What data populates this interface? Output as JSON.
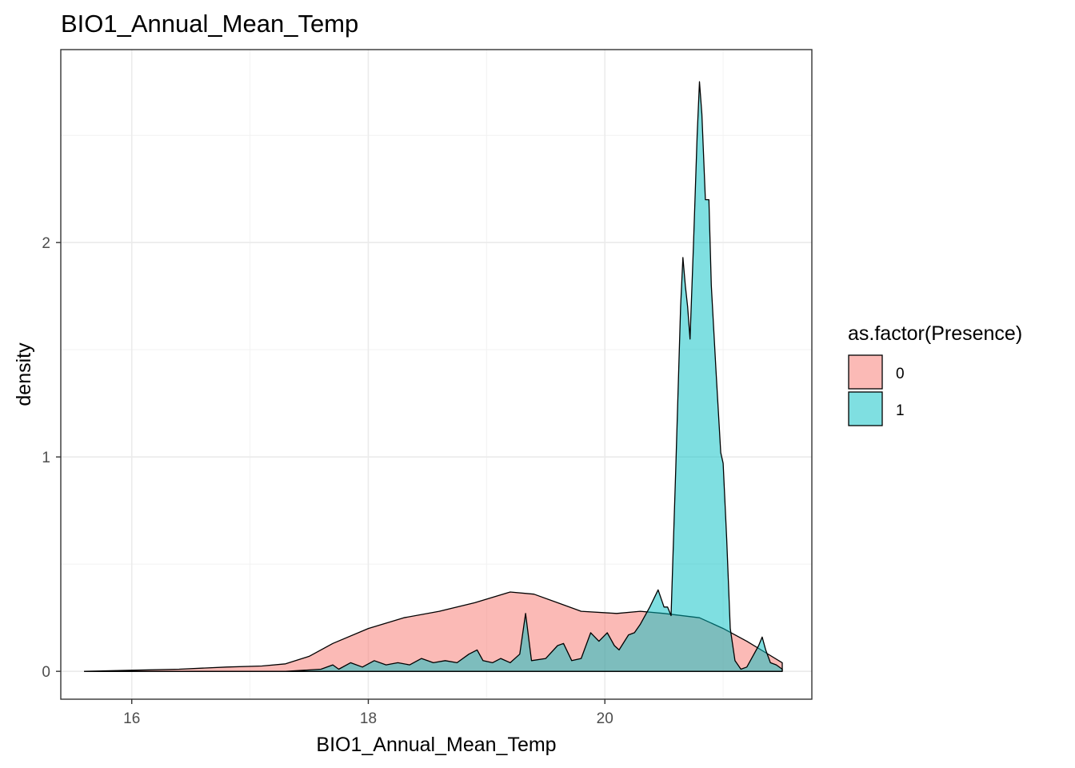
{
  "chart_data": {
    "type": "area",
    "subtype": "density",
    "title": "BIO1_Annual_Mean_Temp",
    "xlabel": "BIO1_Annual_Mean_Temp",
    "ylabel": "density",
    "xlim": [
      15.4,
      21.75
    ],
    "ylim": [
      -0.13,
      2.9
    ],
    "x_ticks": [
      16,
      18,
      20
    ],
    "y_ticks": [
      0,
      1,
      2
    ],
    "x_minor": [
      17,
      19,
      21
    ],
    "y_minor": [
      0.5,
      1.5,
      2.5
    ],
    "grid": true,
    "legend": {
      "title": "as.factor(Presence)",
      "position": "right",
      "entries": [
        {
          "label": "0",
          "color": "#F8766D"
        },
        {
          "label": "1",
          "color": "#00BFC4"
        }
      ]
    },
    "series": [
      {
        "name": "0",
        "color": "#F8766D",
        "points": [
          [
            15.6,
            0
          ],
          [
            16.0,
            0.005
          ],
          [
            16.4,
            0.01
          ],
          [
            16.8,
            0.02
          ],
          [
            17.1,
            0.025
          ],
          [
            17.3,
            0.035
          ],
          [
            17.5,
            0.07
          ],
          [
            17.7,
            0.13
          ],
          [
            18.0,
            0.2
          ],
          [
            18.3,
            0.25
          ],
          [
            18.6,
            0.28
          ],
          [
            18.9,
            0.32
          ],
          [
            19.2,
            0.37
          ],
          [
            19.4,
            0.36
          ],
          [
            19.6,
            0.32
          ],
          [
            19.8,
            0.28
          ],
          [
            20.1,
            0.27
          ],
          [
            20.3,
            0.28
          ],
          [
            20.5,
            0.27
          ],
          [
            20.8,
            0.25
          ],
          [
            21.0,
            0.2
          ],
          [
            21.2,
            0.14
          ],
          [
            21.35,
            0.09
          ],
          [
            21.5,
            0.04
          ]
        ]
      },
      {
        "name": "1",
        "color": "#00BFC4",
        "points": [
          [
            15.6,
            0
          ],
          [
            17.3,
            0
          ],
          [
            17.6,
            0.01
          ],
          [
            17.7,
            0.03
          ],
          [
            17.75,
            0.01
          ],
          [
            17.85,
            0.04
          ],
          [
            17.95,
            0.02
          ],
          [
            18.05,
            0.05
          ],
          [
            18.15,
            0.03
          ],
          [
            18.25,
            0.04
          ],
          [
            18.35,
            0.03
          ],
          [
            18.45,
            0.06
          ],
          [
            18.55,
            0.04
          ],
          [
            18.65,
            0.05
          ],
          [
            18.75,
            0.04
          ],
          [
            18.85,
            0.08
          ],
          [
            18.92,
            0.1
          ],
          [
            18.97,
            0.05
          ],
          [
            19.05,
            0.04
          ],
          [
            19.12,
            0.06
          ],
          [
            19.2,
            0.04
          ],
          [
            19.28,
            0.08
          ],
          [
            19.33,
            0.27
          ],
          [
            19.38,
            0.05
          ],
          [
            19.5,
            0.06
          ],
          [
            19.6,
            0.12
          ],
          [
            19.65,
            0.13
          ],
          [
            19.72,
            0.05
          ],
          [
            19.8,
            0.06
          ],
          [
            19.88,
            0.18
          ],
          [
            19.95,
            0.14
          ],
          [
            20.02,
            0.18
          ],
          [
            20.08,
            0.12
          ],
          [
            20.12,
            0.1
          ],
          [
            20.2,
            0.17
          ],
          [
            20.25,
            0.18
          ],
          [
            20.3,
            0.22
          ],
          [
            20.38,
            0.3
          ],
          [
            20.45,
            0.38
          ],
          [
            20.5,
            0.3
          ],
          [
            20.53,
            0.3
          ],
          [
            20.56,
            0.26
          ],
          [
            20.6,
            0.95
          ],
          [
            20.64,
            1.7
          ],
          [
            20.66,
            1.93
          ],
          [
            20.68,
            1.8
          ],
          [
            20.7,
            1.7
          ],
          [
            20.72,
            1.55
          ],
          [
            20.75,
            2.0
          ],
          [
            20.78,
            2.5
          ],
          [
            20.8,
            2.75
          ],
          [
            20.82,
            2.6
          ],
          [
            20.85,
            2.2
          ],
          [
            20.88,
            2.2
          ],
          [
            20.9,
            1.8
          ],
          [
            20.94,
            1.4
          ],
          [
            20.98,
            1.02
          ],
          [
            21.0,
            0.97
          ],
          [
            21.03,
            0.62
          ],
          [
            21.06,
            0.2
          ],
          [
            21.1,
            0.05
          ],
          [
            21.15,
            0.01
          ],
          [
            21.2,
            0.02
          ],
          [
            21.25,
            0.07
          ],
          [
            21.3,
            0.12
          ],
          [
            21.33,
            0.16
          ],
          [
            21.36,
            0.1
          ],
          [
            21.4,
            0.04
          ],
          [
            21.45,
            0.03
          ],
          [
            21.5,
            0.01
          ]
        ]
      }
    ]
  }
}
